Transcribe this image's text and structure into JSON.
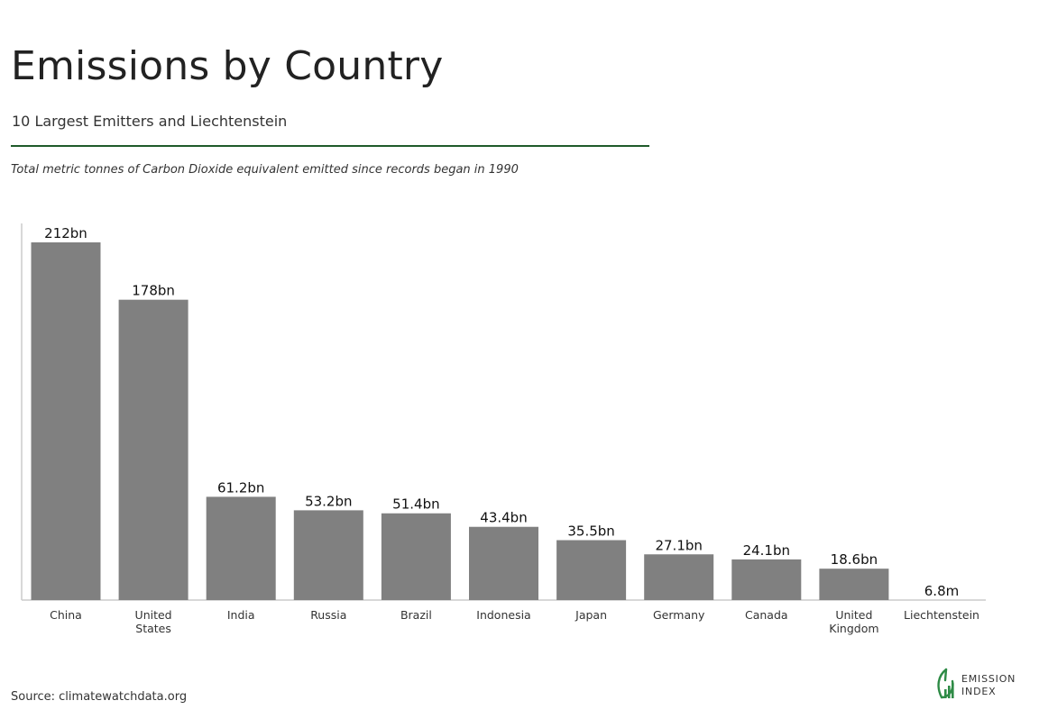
{
  "header": {
    "title": "Emissions by Country",
    "subtitle": "10 Largest Emitters and Liechtenstein",
    "description": "Total metric tonnes of Carbon Dioxide equivalent emitted since records began in 1990"
  },
  "footer": {
    "source": "Source: climatewatchdata.org",
    "logo_line1": "EMISSION",
    "logo_line2": "INDEX"
  },
  "colors": {
    "bar": "#808080",
    "rule": "#1f5a2a",
    "logo": "#2e8b46",
    "axis": "#cccccc"
  },
  "chart_data": {
    "type": "bar",
    "categories": [
      "China",
      "United States",
      "India",
      "Russia",
      "Brazil",
      "Indonesia",
      "Japan",
      "Germany",
      "Canada",
      "United Kingdom",
      "Liechtenstein"
    ],
    "category_label_lines": [
      [
        "China"
      ],
      [
        "United",
        "States"
      ],
      [
        "India"
      ],
      [
        "Russia"
      ],
      [
        "Brazil"
      ],
      [
        "Indonesia"
      ],
      [
        "Japan"
      ],
      [
        "Germany"
      ],
      [
        "Canada"
      ],
      [
        "United",
        "Kingdom"
      ],
      [
        "Liechtenstein"
      ]
    ],
    "values": [
      212000000000,
      178000000000,
      61200000000,
      53200000000,
      51400000000,
      43400000000,
      35500000000,
      27100000000,
      24100000000,
      18600000000,
      6800000
    ],
    "data_labels": [
      "212bn",
      "178bn",
      "61.2bn",
      "53.2bn",
      "51.4bn",
      "43.4bn",
      "35.5bn",
      "27.1bn",
      "24.1bn",
      "18.6bn",
      "6.8m"
    ],
    "ylim": [
      0,
      212000000000
    ],
    "grid": false,
    "legend": "none"
  }
}
